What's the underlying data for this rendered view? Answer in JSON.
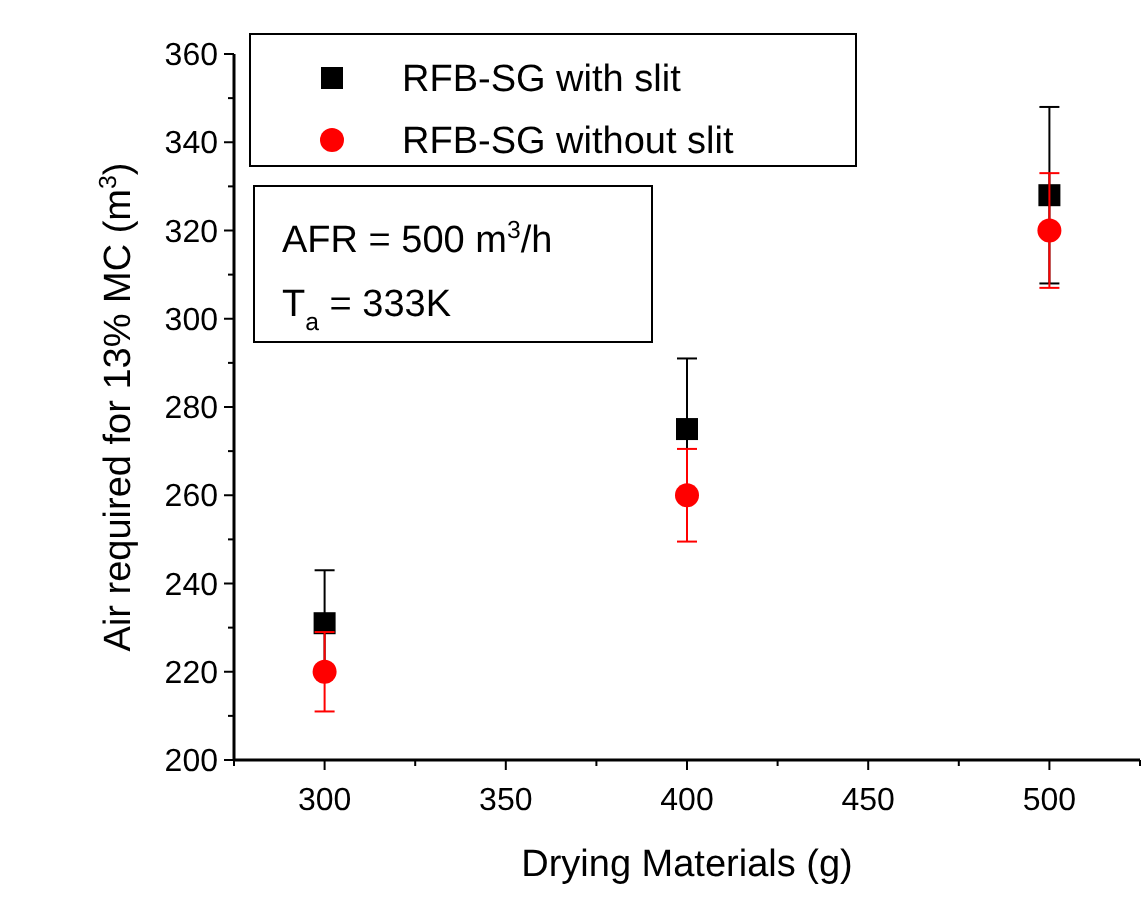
{
  "chart_data": {
    "type": "scatter",
    "xlabel": "Drying Materials (g)",
    "ylabel": "Air required for 13% MC (m$^{3}$)",
    "x": [
      300,
      400,
      500
    ],
    "series": [
      {
        "name": "RFB-SG with slit",
        "color": "#000000",
        "marker": "square",
        "values": [
          231,
          275,
          328
        ],
        "errors": [
          12,
          16,
          20
        ]
      },
      {
        "name": "RFB-SG without slit",
        "color": "#ff0000",
        "marker": "circle",
        "values": [
          220,
          260,
          320
        ],
        "errors": [
          9,
          10.5,
          13
        ]
      }
    ],
    "xlim": [
      275,
      525
    ],
    "xticks": [
      {
        "value": 275,
        "label": null
      },
      300,
      {
        "value": 325,
        "label": null
      },
      350,
      {
        "value": 375,
        "label": null
      },
      400,
      {
        "value": 425,
        "label": null
      },
      450,
      {
        "value": 475,
        "label": null
      },
      500,
      {
        "value": 525,
        "label": null
      }
    ],
    "ylim": [
      200,
      360
    ],
    "yticks": [
      200,
      {
        "value": 210,
        "label": null
      },
      220,
      {
        "value": 230,
        "label": null
      },
      240,
      {
        "value": 250,
        "label": null
      },
      260,
      {
        "value": 270,
        "label": null
      },
      280,
      {
        "value": 290,
        "label": null
      },
      300,
      {
        "value": 310,
        "label": null
      },
      320,
      {
        "value": 330,
        "label": null
      },
      340,
      {
        "value": 350,
        "label": null
      },
      360
    ],
    "legend": "top left",
    "annotations": [
      "AFR = 500 m$^{3}$/h",
      "T$_{a}$ = 333K"
    ]
  }
}
